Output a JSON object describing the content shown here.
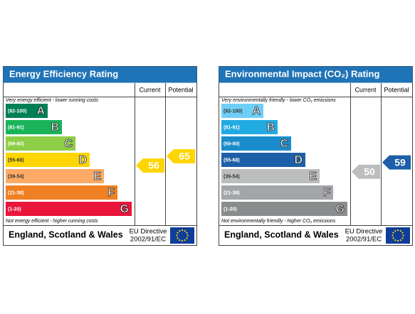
{
  "panels": [
    {
      "title": "Energy Efficiency Rating",
      "columns": [
        "Current",
        "Potential"
      ],
      "top_note": "Very energy efficient - lower running costs",
      "bottom_note": "Not energy efficient - higher running costs",
      "bands": [
        {
          "range": "(92-100)",
          "letter": "A",
          "color": "#008054"
        },
        {
          "range": "(81-91)",
          "letter": "B",
          "color": "#19b459"
        },
        {
          "range": "(69-80)",
          "letter": "C",
          "color": "#8dce46"
        },
        {
          "range": "(55-68)",
          "letter": "D",
          "color": "#ffd500"
        },
        {
          "range": "(39-54)",
          "letter": "E",
          "color": "#fcaa65"
        },
        {
          "range": "(21-38)",
          "letter": "F",
          "color": "#ef8023"
        },
        {
          "range": "(1-20)",
          "letter": "G",
          "color": "#e9153b"
        }
      ],
      "current": 56,
      "potential": 65,
      "region": "England, Scotland & Wales",
      "directive": [
        "EU Directive",
        "2002/91/EC"
      ]
    },
    {
      "title": "Environmental Impact (CO₂) Rating",
      "columns": [
        "Current",
        "Potential"
      ],
      "top_note": "Very environmentally friendly - lower CO₂ emissions",
      "bottom_note": "Not environmentally friendly - higher CO₂ emissions",
      "bands": [
        {
          "range": "(92-100)",
          "letter": "A",
          "color": "#6ecff6"
        },
        {
          "range": "(81-91)",
          "letter": "B",
          "color": "#22aae2"
        },
        {
          "range": "(69-80)",
          "letter": "C",
          "color": "#1a8ccb"
        },
        {
          "range": "(55-68)",
          "letter": "D",
          "color": "#1d5fa8"
        },
        {
          "range": "(39-54)",
          "letter": "E",
          "color": "#bbbdbf"
        },
        {
          "range": "(21-38)",
          "letter": "F",
          "color": "#a3a5a8"
        },
        {
          "range": "(1-20)",
          "letter": "G",
          "color": "#8a8c8e"
        }
      ],
      "current": 50,
      "potential": 59,
      "region": "England, Scotland & Wales",
      "directive": [
        "EU Directive",
        "2002/91/EC"
      ]
    }
  ]
}
